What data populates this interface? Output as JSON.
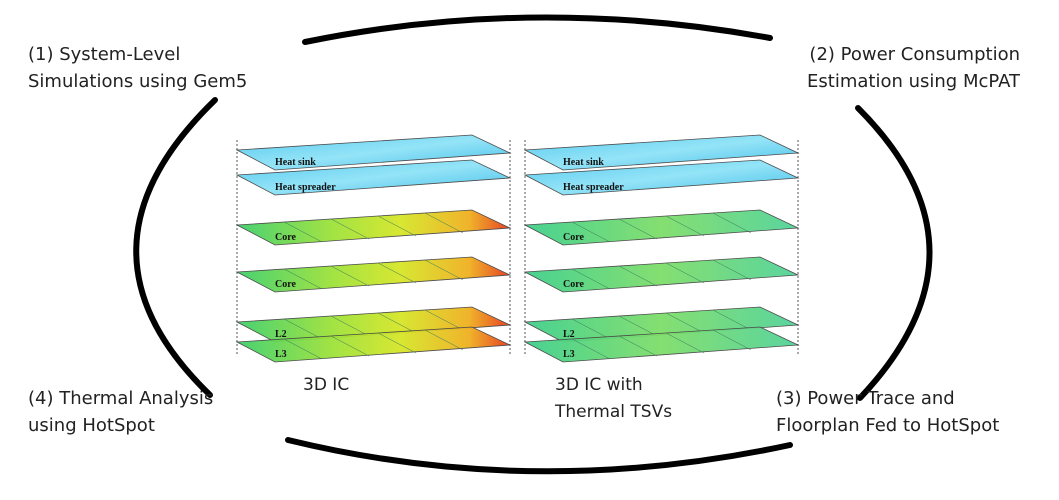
{
  "steps": [
    {
      "lines": [
        "(1)  System-Level",
        "Simulations using Gem5"
      ]
    },
    {
      "lines": [
        "(2) Power Consumption",
        "Estimation using McPAT"
      ]
    },
    {
      "lines": [
        "(3) Power Trace and",
        "Floorplan Fed to HotSpot"
      ]
    },
    {
      "lines": [
        "(4) Thermal Analysis",
        "using HotSpot"
      ]
    }
  ],
  "stacks": [
    {
      "caption": [
        "3D IC"
      ],
      "layers": [
        "Heat sink",
        "Heat spreader",
        "Core",
        "Core",
        "L2",
        "L3"
      ]
    },
    {
      "caption": [
        "3D IC with",
        "Thermal TSVs"
      ],
      "layers": [
        "Heat sink",
        "Heat spreader",
        "Core",
        "Core",
        "L2",
        "L3"
      ]
    }
  ]
}
